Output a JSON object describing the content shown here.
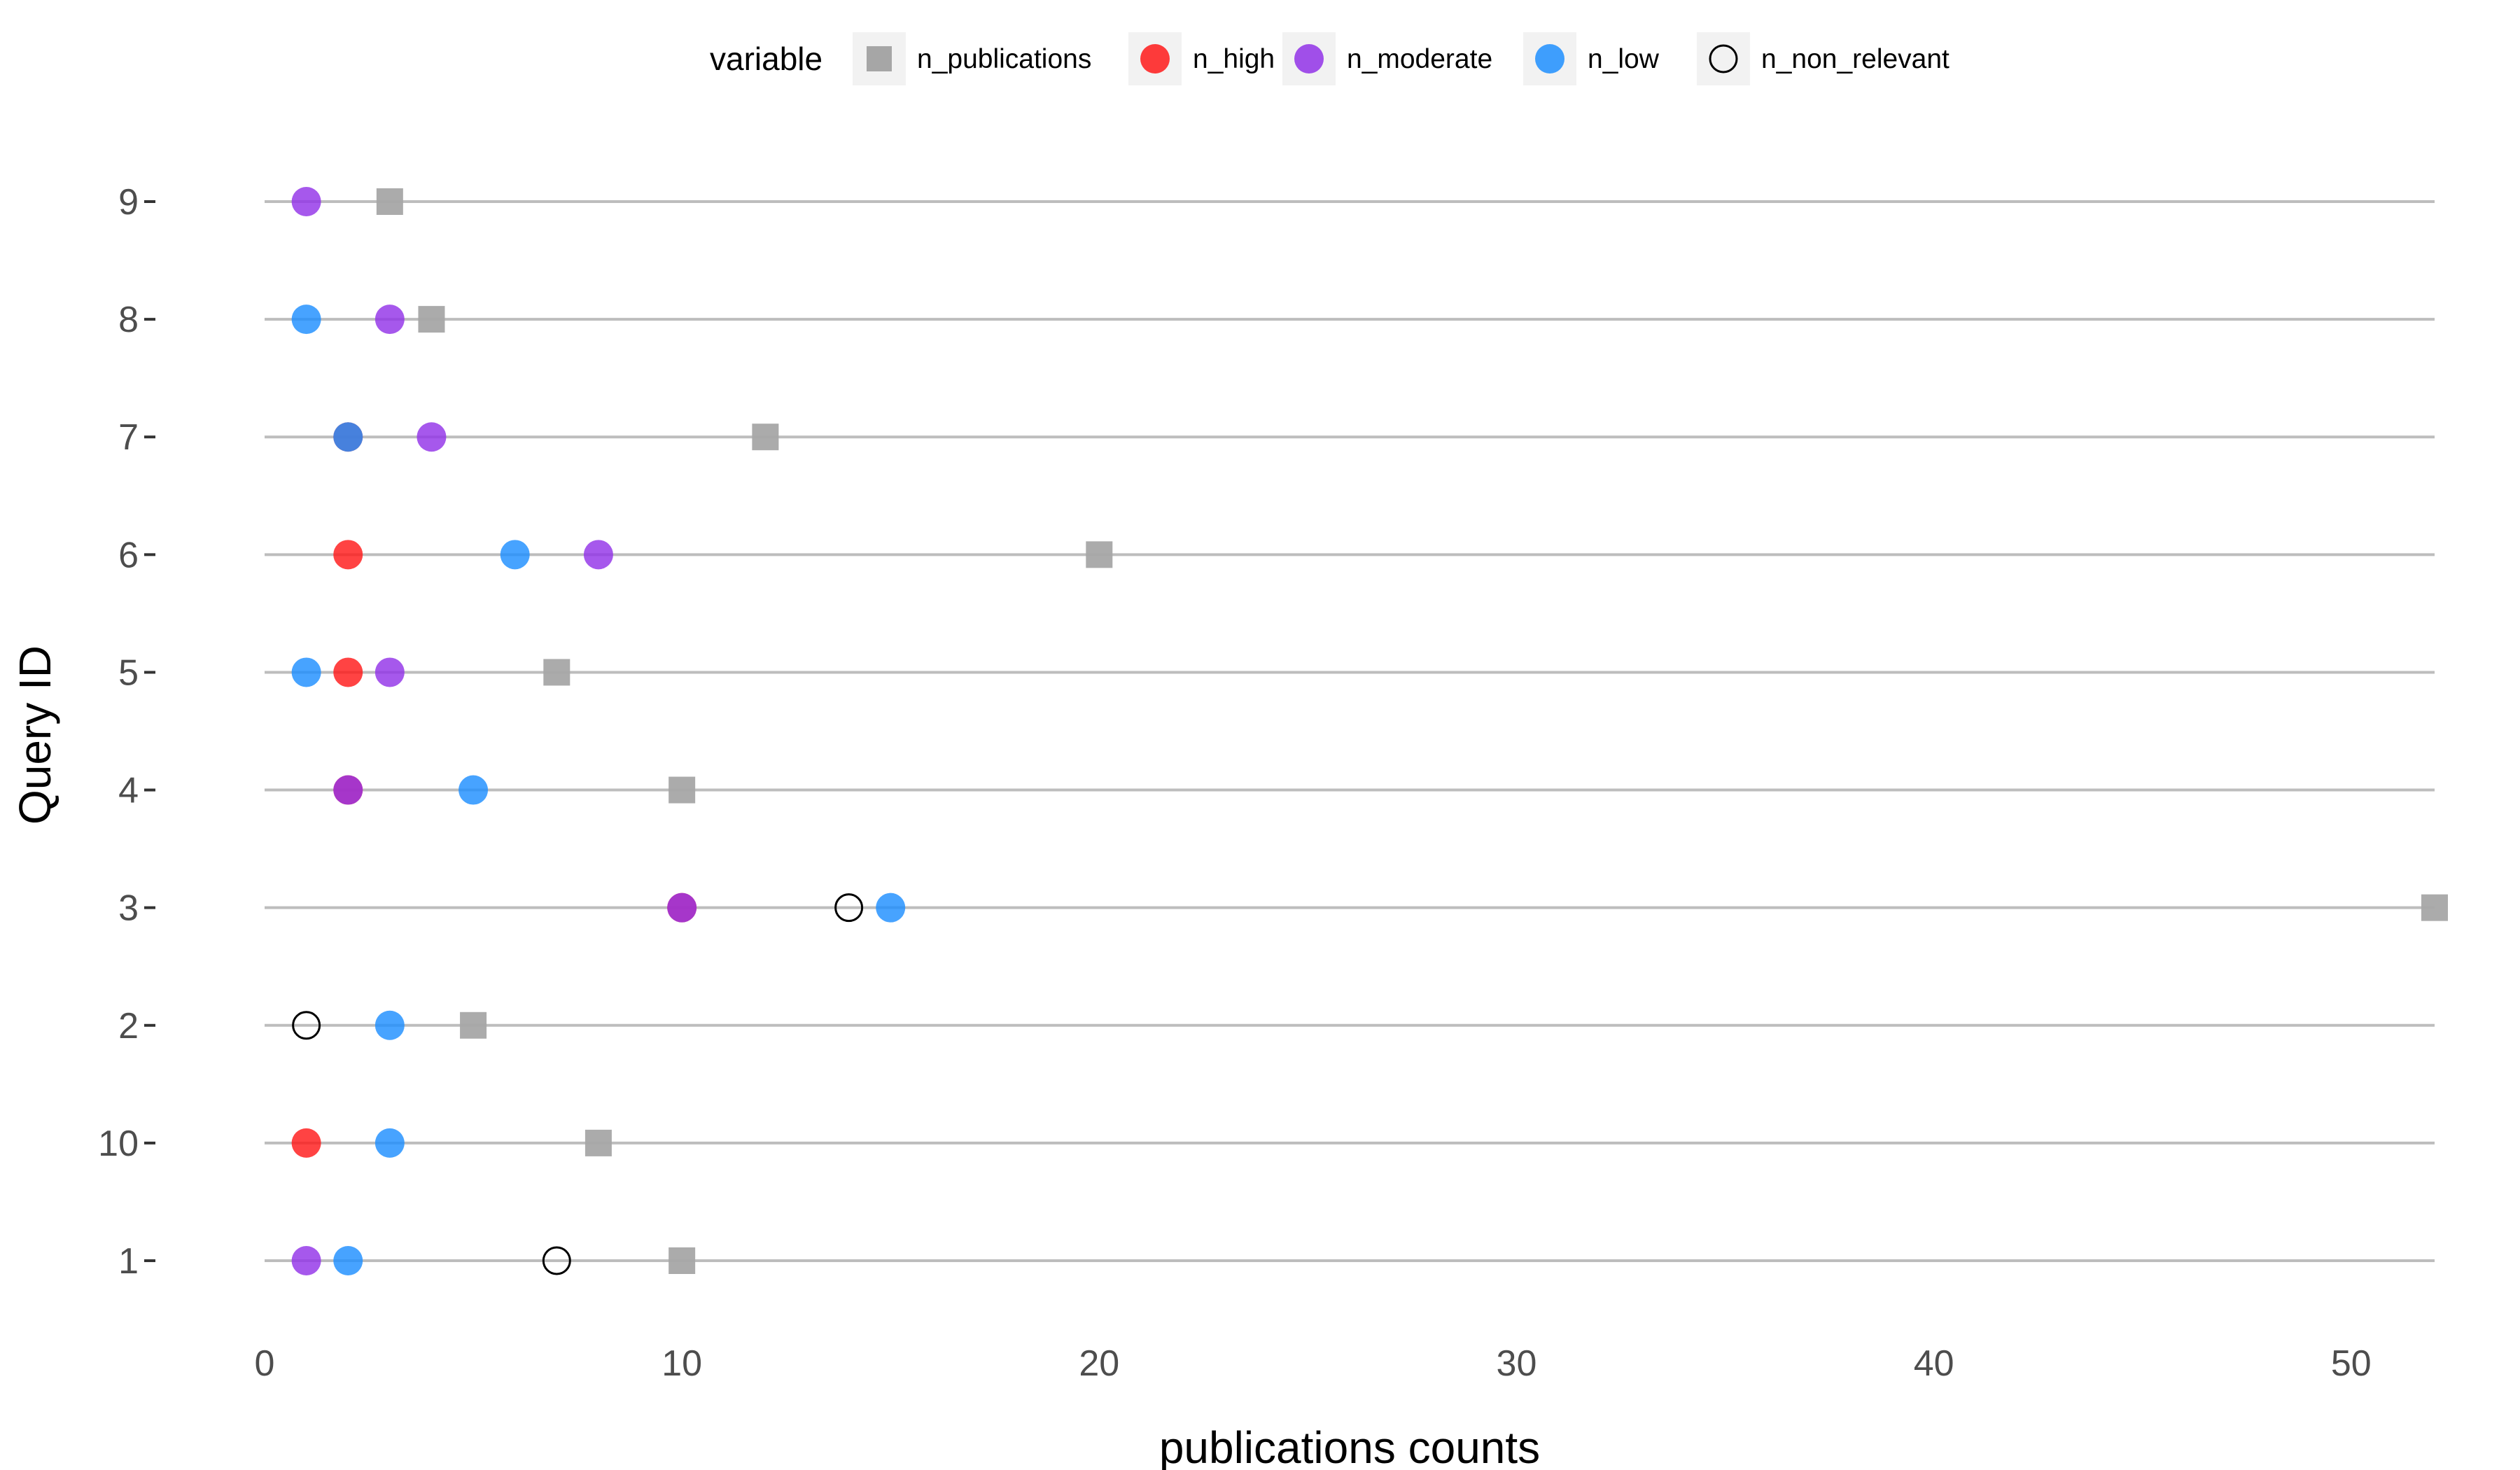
{
  "chart_data": {
    "type": "scatter",
    "title": "",
    "xlabel": "publications counts",
    "ylabel": "Query ID",
    "xlim": [
      0,
      52
    ],
    "x_ticks": [
      0,
      10,
      20,
      30,
      40,
      50
    ],
    "categories": [
      "1",
      "10",
      "2",
      "3",
      "4",
      "5",
      "6",
      "7",
      "8",
      "9"
    ],
    "grid": "horizontal lines per category",
    "legend": {
      "title": "variable",
      "position": "top",
      "entries": [
        "n_publications",
        "n_high",
        "n_moderate",
        "n_low",
        "n_non_relevant"
      ]
    },
    "series": [
      {
        "name": "n_publications",
        "shape": "square",
        "color": "#a6a6a6",
        "points": [
          {
            "query": "1",
            "value": 10
          },
          {
            "query": "10",
            "value": 8
          },
          {
            "query": "2",
            "value": 5
          },
          {
            "query": "3",
            "value": 52
          },
          {
            "query": "4",
            "value": 10
          },
          {
            "query": "5",
            "value": 7
          },
          {
            "query": "6",
            "value": 20
          },
          {
            "query": "7",
            "value": 12
          },
          {
            "query": "8",
            "value": 4
          },
          {
            "query": "9",
            "value": 3
          }
        ]
      },
      {
        "name": "n_high",
        "shape": "circle",
        "color": "#ff1a1a",
        "points": [
          {
            "query": "10",
            "value": 1
          },
          {
            "query": "3",
            "value": 10
          },
          {
            "query": "4",
            "value": 2
          },
          {
            "query": "5",
            "value": 2
          },
          {
            "query": "6",
            "value": 2
          },
          {
            "query": "7",
            "value": 2
          }
        ]
      },
      {
        "name": "n_moderate",
        "shape": "circle",
        "color": "#9233e8",
        "points": [
          {
            "query": "1",
            "value": 1
          },
          {
            "query": "3",
            "value": 10
          },
          {
            "query": "4",
            "value": 2
          },
          {
            "query": "5",
            "value": 3
          },
          {
            "query": "6",
            "value": 8
          },
          {
            "query": "7",
            "value": 4
          },
          {
            "query": "8",
            "value": 3
          },
          {
            "query": "9",
            "value": 1
          }
        ]
      },
      {
        "name": "n_low",
        "shape": "circle",
        "color": "#1e8fff",
        "points": [
          {
            "query": "1",
            "value": 2
          },
          {
            "query": "10",
            "value": 3
          },
          {
            "query": "2",
            "value": 3
          },
          {
            "query": "3",
            "value": 15
          },
          {
            "query": "4",
            "value": 5
          },
          {
            "query": "5",
            "value": 1
          },
          {
            "query": "6",
            "value": 6
          },
          {
            "query": "7",
            "value": 2
          },
          {
            "query": "8",
            "value": 1
          }
        ]
      },
      {
        "name": "n_non_relevant",
        "shape": "open-circle",
        "color": "#000000",
        "points": [
          {
            "query": "1",
            "value": 7
          },
          {
            "query": "2",
            "value": 1
          },
          {
            "query": "3",
            "value": 14
          }
        ]
      }
    ]
  }
}
